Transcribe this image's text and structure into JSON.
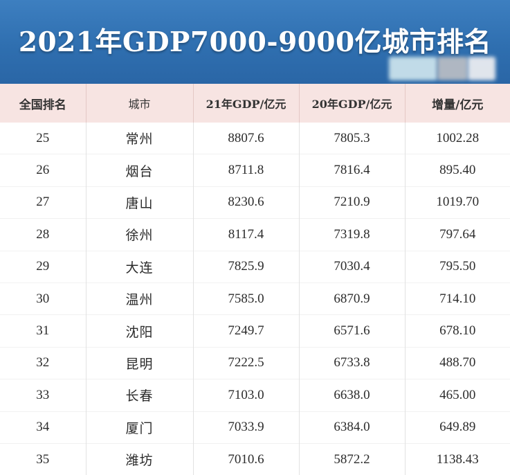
{
  "title": "2021年GDP7000-9000亿城市排名",
  "table": {
    "headers": [
      "全国排名",
      "城市",
      "21年GDP/亿元",
      "20年GDP/亿元",
      "增量/亿元"
    ],
    "rows": [
      [
        "25",
        "常州",
        "8807.6",
        "7805.3",
        "1002.28"
      ],
      [
        "26",
        "烟台",
        "8711.8",
        "7816.4",
        "895.40"
      ],
      [
        "27",
        "唐山",
        "8230.6",
        "7210.9",
        "1019.70"
      ],
      [
        "28",
        "徐州",
        "8117.4",
        "7319.8",
        "797.64"
      ],
      [
        "29",
        "大连",
        "7825.9",
        "7030.4",
        "795.50"
      ],
      [
        "30",
        "温州",
        "7585.0",
        "6870.9",
        "714.10"
      ],
      [
        "31",
        "沈阳",
        "7249.7",
        "6571.6",
        "678.10"
      ],
      [
        "32",
        "昆明",
        "7222.5",
        "6733.8",
        "488.70"
      ],
      [
        "33",
        "长春",
        "7103.0",
        "6638.0",
        "465.00"
      ],
      [
        "34",
        "厦门",
        "7033.9",
        "6384.0",
        "649.89"
      ],
      [
        "35",
        "潍坊",
        "7010.6",
        "5872.2",
        "1138.43"
      ]
    ]
  },
  "colors": {
    "banner": "#2f6fb0",
    "header_row": "#f7e4e2"
  }
}
